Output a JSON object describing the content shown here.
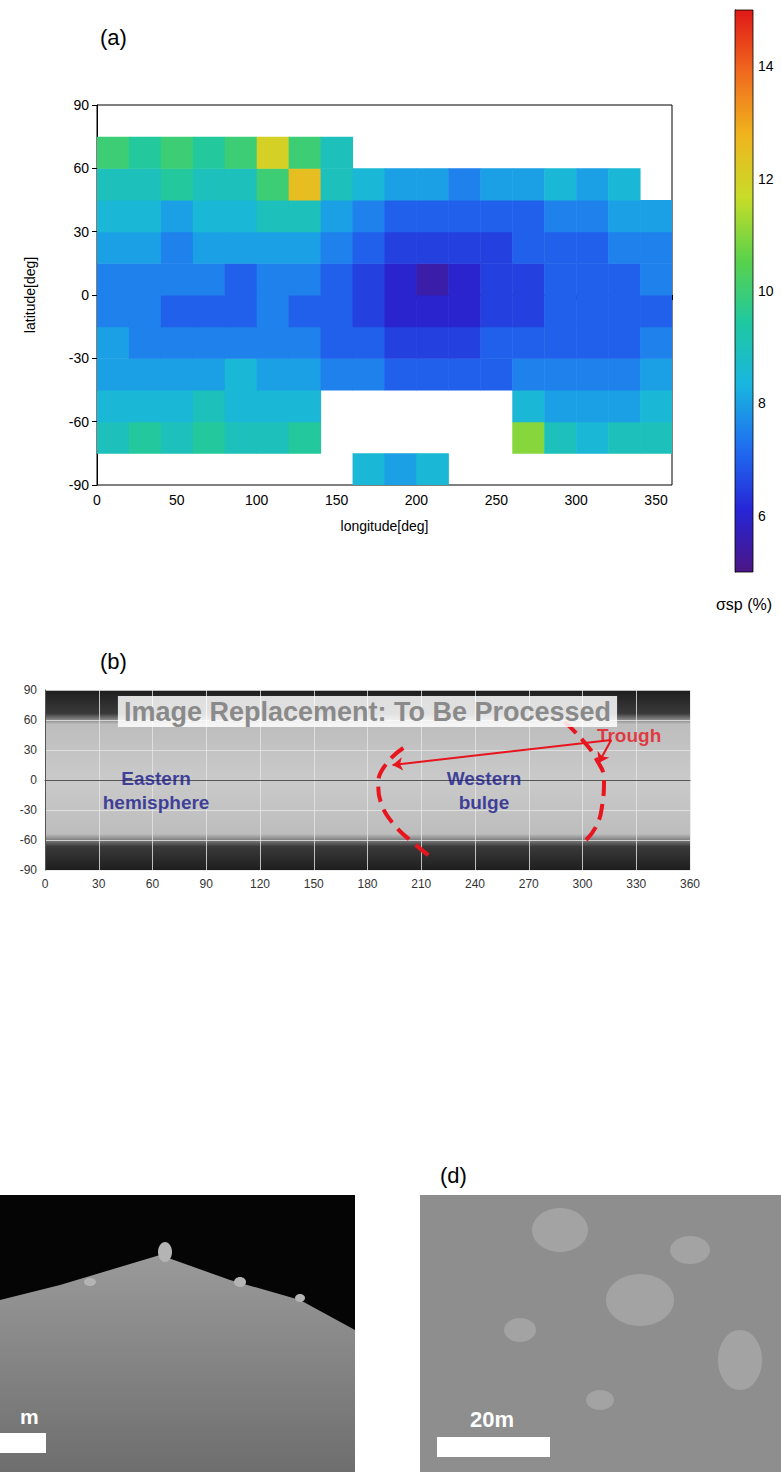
{
  "chart_data": [
    {
      "type": "heatmap",
      "label": "(a)",
      "x_label": "longitude[deg]",
      "y_label": "latitude[deg]",
      "xlim": [
        0,
        360
      ],
      "xticks": [
        0,
        50,
        100,
        150,
        200,
        250,
        300,
        350
      ],
      "ylim": [
        -90,
        90
      ],
      "yticks": [
        -90,
        -60,
        -30,
        0,
        30,
        60,
        90
      ],
      "x_bins": [
        0,
        20,
        40,
        60,
        80,
        100,
        120,
        140,
        160,
        180,
        200,
        220,
        240,
        260,
        280,
        300,
        320,
        340,
        360
      ],
      "y_bins": [
        -90,
        -75,
        -60,
        -45,
        -30,
        -15,
        0,
        15,
        30,
        45,
        60,
        75,
        90
      ],
      "cells": [
        [
          null,
          null,
          null,
          null,
          null,
          null,
          null,
          null,
          8.5,
          8,
          8.5,
          null,
          null,
          null,
          null,
          null,
          null,
          null
        ],
        [
          9,
          9.5,
          9,
          9.5,
          9,
          9,
          9.5,
          null,
          null,
          null,
          null,
          null,
          null,
          11,
          9,
          8.5,
          9,
          9
        ],
        [
          8.5,
          8.5,
          8.5,
          9,
          8.5,
          8.5,
          8.5,
          null,
          null,
          null,
          null,
          null,
          null,
          8.5,
          8,
          8,
          8,
          8.5
        ],
        [
          8,
          8,
          8,
          8,
          8.5,
          8,
          8,
          7.5,
          7.5,
          7,
          7,
          7,
          7,
          7.5,
          7.5,
          7.5,
          7.5,
          8
        ],
        [
          8,
          7.5,
          7.5,
          7.5,
          7.5,
          7.5,
          7.5,
          7,
          7,
          6.5,
          6.5,
          6.5,
          7,
          7,
          7,
          7,
          7,
          7.5
        ],
        [
          7.5,
          7.5,
          7,
          7,
          7,
          7.5,
          7,
          7,
          6.5,
          6,
          6,
          6,
          6.5,
          6.5,
          7,
          7,
          7,
          7
        ],
        [
          7.5,
          7.5,
          7.5,
          7.5,
          7,
          7.5,
          7.5,
          7,
          6.5,
          6,
          5.5,
          6,
          6.5,
          6.5,
          7,
          7,
          7,
          7.5
        ],
        [
          8,
          8,
          7.5,
          8,
          8,
          8,
          8,
          7.5,
          7,
          6.5,
          6.5,
          6.5,
          6.5,
          7,
          7,
          7,
          7.5,
          7.5
        ],
        [
          8.5,
          8.5,
          8,
          8.5,
          8.5,
          9,
          9,
          8,
          7.5,
          7,
          7,
          7,
          7,
          7,
          7.5,
          7.5,
          8,
          8
        ],
        [
          9,
          9,
          9.5,
          9,
          9,
          10,
          12.5,
          9,
          8.5,
          8,
          8,
          7.5,
          8,
          8,
          8.5,
          8,
          8.5,
          null
        ],
        [
          10,
          9.5,
          10,
          9.5,
          10,
          12,
          10,
          9,
          null,
          null,
          null,
          null,
          null,
          null,
          null,
          null,
          null,
          null
        ],
        [
          null,
          null,
          null,
          null,
          null,
          null,
          null,
          null,
          null,
          null,
          null,
          null,
          null,
          null,
          null,
          null,
          null,
          null
        ]
      ],
      "colorbar": {
        "label": "σsp (%)",
        "range": [
          5,
          15
        ],
        "ticks": [
          6,
          8,
          10,
          12,
          14
        ]
      }
    },
    {
      "type": "line",
      "label": "(b)",
      "xlim": [
        0,
        360
      ],
      "xticks": [
        0,
        30,
        60,
        90,
        120,
        150,
        180,
        210,
        240,
        270,
        300,
        330,
        360
      ],
      "ylim": [
        -90,
        90
      ],
      "yticks": [
        -90,
        -60,
        -30,
        0,
        30,
        60,
        90
      ],
      "grid": true,
      "series": [
        {
          "type": "line",
          "color": "#e8141e",
          "line_style": "dashed",
          "points": [
            [
              200,
              32
            ],
            [
              190,
              15
            ],
            [
              186,
              -5
            ],
            [
              188,
              -25
            ],
            [
              195,
              -45
            ],
            [
              205,
              -62
            ],
            [
              216,
              -78
            ]
          ]
        },
        {
          "type": "line",
          "color": "#e8141e",
          "line_style": "dashed",
          "points": [
            [
              290,
              58
            ],
            [
              300,
              40
            ],
            [
              308,
              20
            ],
            [
              312,
              0
            ],
            [
              311,
              -25
            ],
            [
              308,
              -45
            ],
            [
              302,
              -60
            ]
          ]
        }
      ],
      "arrows": {
        "color": "#e8141e",
        "from": [
          316,
          40
        ],
        "to": [
          [
            194,
            15
          ],
          [
            309,
            17
          ]
        ]
      },
      "annotations": [
        {
          "text": "Trough",
          "at": [
            326,
            45
          ],
          "color": "#e8141e"
        },
        {
          "text": "Eastern hemisphere",
          "at": [
            62,
            -10
          ],
          "color": "#1a1a8c"
        },
        {
          "text": "Western bulge",
          "at": [
            245,
            -10
          ],
          "color": "#1a1a8c"
        }
      ],
      "overlay_text": "Image Replacement: To Be Processed"
    }
  ],
  "images": [
    {
      "scale_label": "m"
    },
    {
      "label": "(d)",
      "scale_label": "20m"
    }
  ]
}
